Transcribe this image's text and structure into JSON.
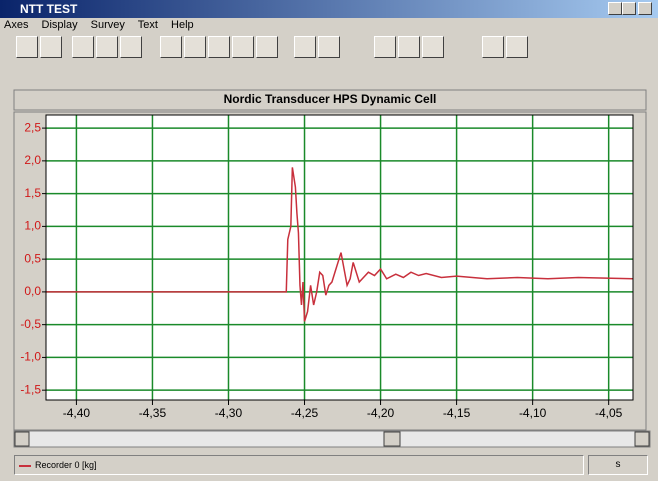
{
  "window": {
    "title": "NTT TEST"
  },
  "menu": [
    "Axes",
    "Display",
    "Survey",
    "Text",
    "Help"
  ],
  "status": {
    "unit": "s"
  },
  "chart_data": {
    "type": "line",
    "title": "Nordic Transducer  HPS Dynamic  Cell",
    "x": [
      -4.42,
      -4.262,
      -4.261,
      -4.259,
      -4.258,
      -4.256,
      -4.255,
      -4.254,
      -4.253,
      -4.252,
      -4.251,
      -4.25,
      -4.248,
      -4.246,
      -4.244,
      -4.242,
      -4.24,
      -4.238,
      -4.236,
      -4.234,
      -4.232,
      -4.23,
      -4.228,
      -4.226,
      -4.224,
      -4.222,
      -4.22,
      -4.218,
      -4.216,
      -4.214,
      -4.212,
      -4.208,
      -4.204,
      -4.2,
      -4.196,
      -4.19,
      -4.185,
      -4.18,
      -4.175,
      -4.17,
      -4.16,
      -4.15,
      -4.13,
      -4.11,
      -4.09,
      -4.07,
      -4.034
    ],
    "series": [
      {
        "name": "Recorder 0 [kg]",
        "color": "#c8303c",
        "values": [
          0,
          0,
          0.8,
          1.0,
          1.9,
          1.6,
          1.2,
          0.9,
          0.1,
          -0.2,
          0.15,
          -0.45,
          -0.3,
          0.1,
          -0.2,
          0.0,
          0.3,
          0.25,
          -0.05,
          0.1,
          0.15,
          0.3,
          0.45,
          0.6,
          0.35,
          0.1,
          0.2,
          0.45,
          0.3,
          0.15,
          0.2,
          0.3,
          0.25,
          0.35,
          0.2,
          0.27,
          0.22,
          0.3,
          0.25,
          0.28,
          0.22,
          0.24,
          0.2,
          0.22,
          0.2,
          0.22,
          0.2
        ]
      }
    ],
    "xlim": [
      -4.42,
      -4.034
    ],
    "ylim": [
      -1.65,
      2.7
    ],
    "xticks": [
      {
        "value": -4.4,
        "label": "-4,40"
      },
      {
        "value": -4.35,
        "label": "-4,35"
      },
      {
        "value": -4.3,
        "label": "-4,30"
      },
      {
        "value": -4.25,
        "label": "-4,25"
      },
      {
        "value": -4.2,
        "label": "-4,20"
      },
      {
        "value": -4.15,
        "label": "-4,15"
      },
      {
        "value": -4.1,
        "label": "-4,10"
      },
      {
        "value": -4.05,
        "label": "-4,05"
      }
    ],
    "yticks": [
      {
        "value": 2.5,
        "label": "2,5"
      },
      {
        "value": 2.0,
        "label": "2,0"
      },
      {
        "value": 1.5,
        "label": "1,5"
      },
      {
        "value": 1.0,
        "label": "1,0"
      },
      {
        "value": 0.5,
        "label": "0,5"
      },
      {
        "value": 0,
        "label": "0,0"
      },
      {
        "value": -0.5,
        "label": "-0,5"
      },
      {
        "value": -1.0,
        "label": "-1,0"
      },
      {
        "value": -1.5,
        "label": "-1,5"
      }
    ],
    "grid": true
  }
}
